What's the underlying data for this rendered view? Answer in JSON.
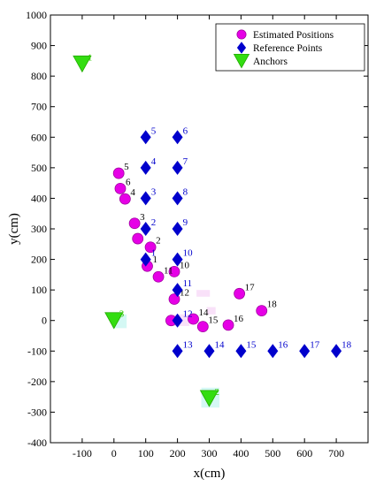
{
  "chart_data": {
    "type": "scatter",
    "xlabel": "x(cm)",
    "ylabel": "y(cm)",
    "xlim": [
      -200,
      800
    ],
    "ylim": [
      -400,
      1000
    ],
    "xticks": [
      -100,
      0,
      100,
      200,
      300,
      400,
      500,
      600,
      700
    ],
    "yticks": [
      -400,
      -300,
      -200,
      -100,
      0,
      100,
      200,
      300,
      400,
      500,
      600,
      700,
      800,
      900,
      1000
    ],
    "legend_position": "top-right",
    "grid": false,
    "series": [
      {
        "name": "Estimated Positions",
        "marker": "circle",
        "color": "#e600e6",
        "label_color": "#000000",
        "points": [
          {
            "label": "1",
            "x": 105,
            "y": 178
          },
          {
            "label": "2",
            "x": 115,
            "y": 240
          },
          {
            "label": "3",
            "x": 65,
            "y": 318
          },
          {
            "label": "",
            "x": 75,
            "y": 268
          },
          {
            "label": "4",
            "x": 35,
            "y": 398
          },
          {
            "label": "6",
            "x": 20,
            "y": 432
          },
          {
            "label": "5",
            "x": 15,
            "y": 482
          },
          {
            "label": "10",
            "x": 190,
            "y": 160
          },
          {
            "label": "11",
            "x": 140,
            "y": 143
          },
          {
            "label": "12",
            "x": 190,
            "y": 70
          },
          {
            "label": "",
            "x": 180,
            "y": 0
          },
          {
            "label": "14",
            "x": 250,
            "y": 5
          },
          {
            "label": "15",
            "x": 280,
            "y": -20
          },
          {
            "label": "16",
            "x": 360,
            "y": -15
          },
          {
            "label": "17",
            "x": 395,
            "y": 88
          },
          {
            "label": "18",
            "x": 465,
            "y": 32
          }
        ]
      },
      {
        "name": "Reference Points",
        "marker": "diamond",
        "color": "#0000cc",
        "label_color": "#0000cc",
        "points": [
          {
            "label": "1",
            "x": 100,
            "y": 200
          },
          {
            "label": "2",
            "x": 100,
            "y": 300
          },
          {
            "label": "3",
            "x": 100,
            "y": 400
          },
          {
            "label": "4",
            "x": 100,
            "y": 500
          },
          {
            "label": "5",
            "x": 100,
            "y": 600
          },
          {
            "label": "6",
            "x": 200,
            "y": 600
          },
          {
            "label": "7",
            "x": 200,
            "y": 500
          },
          {
            "label": "8",
            "x": 200,
            "y": 400
          },
          {
            "label": "9",
            "x": 200,
            "y": 300
          },
          {
            "label": "10",
            "x": 200,
            "y": 200
          },
          {
            "label": "11",
            "x": 200,
            "y": 100
          },
          {
            "label": "12",
            "x": 200,
            "y": 0
          },
          {
            "label": "13",
            "x": 200,
            "y": -100
          },
          {
            "label": "14",
            "x": 300,
            "y": -100
          },
          {
            "label": "15",
            "x": 400,
            "y": -100
          },
          {
            "label": "16",
            "x": 500,
            "y": -100
          },
          {
            "label": "17",
            "x": 600,
            "y": -100
          },
          {
            "label": "18",
            "x": 700,
            "y": -100
          }
        ]
      },
      {
        "name": "Anchors",
        "marker": "triangle-down",
        "color": "#33dd11",
        "label_color": "#33cc00",
        "points": [
          {
            "label": "1",
            "x": -100,
            "y": 840
          },
          {
            "label": "2",
            "x": 300,
            "y": -255
          },
          {
            "label": "3",
            "x": 0,
            "y": 0
          }
        ]
      }
    ]
  }
}
